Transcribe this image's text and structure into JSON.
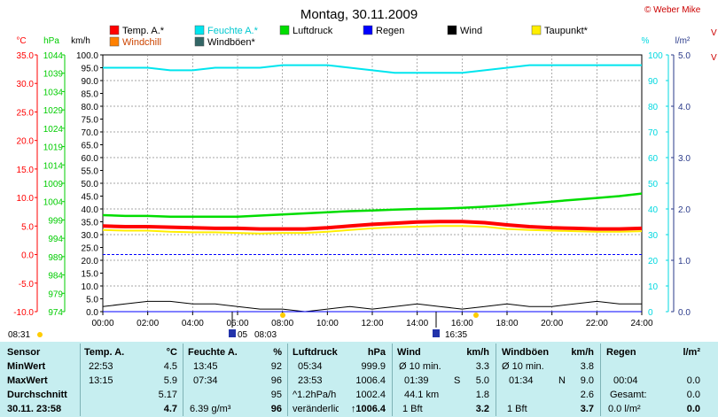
{
  "page": {
    "title": "Montag, 30.11.2009",
    "copyright": "© Weber Mike",
    "left_edge_labels": [
      "V",
      "V"
    ]
  },
  "colors": {
    "temp": "#ff0000",
    "humidity": "#00e5ee",
    "pressure": "#00dd00",
    "rain": "#0000ff",
    "wind": "#000000",
    "dewpoint": "#ffee00",
    "windchill": "#ff8000",
    "gust": "#336666",
    "rain_axis": "#2a3a8a",
    "stats_bg": "#c6eef0"
  },
  "legend": [
    {
      "label": "Temp. A.*",
      "color": "#ff0000"
    },
    {
      "label": "Feuchte A.*",
      "color": "#00e5ee"
    },
    {
      "label": "Luftdruck",
      "color": "#00dd00"
    },
    {
      "label": "Regen",
      "color": "#0000ff"
    },
    {
      "label": "Wind",
      "color": "#000000"
    },
    {
      "label": "Taupunkt*",
      "color": "#ffee00"
    },
    {
      "label": "Windchill",
      "color": "#ff8000"
    },
    {
      "label": "Windböen*",
      "color": "#336666"
    }
  ],
  "chart_data": {
    "type": "line",
    "title": "Montag, 30.11.2009",
    "x_range_hours": [
      0,
      24
    ],
    "x_tick_labels": [
      "00:00",
      "02:00",
      "04:00",
      "06:00",
      "08:00",
      "10:00",
      "12:00",
      "14:00",
      "16:00",
      "18:00",
      "20:00",
      "22:00",
      "24:00"
    ],
    "grid": true,
    "axes": {
      "temp_c": {
        "unit": "°C",
        "range": [
          -10,
          35
        ],
        "ticks": [
          "35.0",
          "30.0",
          "25.0",
          "20.0",
          "15.0",
          "10.0",
          "5.0",
          "0.0",
          "-5.0",
          "-10.0"
        ]
      },
      "pressure_hpa": {
        "unit": "hPa",
        "range": [
          974,
          1044
        ],
        "ticks": [
          "1044",
          "1039",
          "1034",
          "1029",
          "1024",
          "1019",
          "1014",
          "1009",
          "1004",
          "999",
          "994",
          "989",
          "984",
          "979",
          "974"
        ]
      },
      "wind_kmh": {
        "unit": "km/h",
        "range": [
          0,
          100
        ],
        "ticks": [
          "100.0",
          "95.0",
          "90.0",
          "85.0",
          "80.0",
          "75.0",
          "70.0",
          "65.0",
          "60.0",
          "55.0",
          "50.0",
          "45.0",
          "40.0",
          "35.0",
          "30.0",
          "25.0",
          "20.0",
          "15.0",
          "10.0",
          "5.0",
          "0.0"
        ]
      },
      "humidity_pct": {
        "unit": "%",
        "range": [
          0,
          100
        ],
        "ticks": [
          "100",
          "90",
          "80",
          "70",
          "60",
          "50",
          "40",
          "30",
          "20",
          "10",
          "0"
        ]
      },
      "rain_lm2": {
        "unit": "l/m²",
        "range": [
          0,
          5
        ],
        "ticks": [
          "5.0",
          "4.0",
          "3.0",
          "2.0",
          "1.0",
          "0.0"
        ]
      }
    },
    "series": [
      {
        "name": "Temp. A.*",
        "axis": "temp_c",
        "x": [
          0,
          1,
          2,
          3,
          4,
          5,
          6,
          7,
          8,
          9,
          10,
          11,
          12,
          13,
          14,
          15,
          16,
          17,
          18,
          19,
          20,
          21,
          22,
          23,
          24
        ],
        "values": [
          5.0,
          4.9,
          4.9,
          4.8,
          4.7,
          4.6,
          4.6,
          4.5,
          4.5,
          4.5,
          4.7,
          5.0,
          5.3,
          5.5,
          5.7,
          5.8,
          5.8,
          5.6,
          5.2,
          4.9,
          4.7,
          4.6,
          4.5,
          4.5,
          4.6
        ]
      },
      {
        "name": "Feuchte A.*",
        "axis": "humidity_pct",
        "x": [
          0,
          1,
          2,
          3,
          4,
          5,
          6,
          7,
          8,
          9,
          10,
          11,
          12,
          13,
          14,
          15,
          16,
          17,
          18,
          19,
          20,
          21,
          22,
          23,
          24
        ],
        "values": [
          95,
          95,
          95,
          94,
          94,
          95,
          95,
          95,
          96,
          96,
          96,
          95,
          94,
          93,
          93,
          93,
          93,
          94,
          95,
          96,
          96,
          96,
          96,
          96,
          96
        ]
      },
      {
        "name": "Luftdruck",
        "axis": "pressure_hpa",
        "x": [
          0,
          1,
          2,
          3,
          4,
          5,
          6,
          7,
          8,
          9,
          10,
          11,
          12,
          13,
          14,
          15,
          16,
          17,
          18,
          19,
          20,
          21,
          22,
          23,
          24
        ],
        "values": [
          1000.3,
          1000.1,
          1000.1,
          999.9,
          999.9,
          999.9,
          999.9,
          1000.2,
          1000.5,
          1000.8,
          1001.1,
          1001.4,
          1001.6,
          1001.8,
          1002.0,
          1002.1,
          1002.3,
          1002.6,
          1003.0,
          1003.5,
          1004.0,
          1004.5,
          1005.0,
          1005.5,
          1006.2
        ]
      },
      {
        "name": "Taupunkt*",
        "axis": "temp_c",
        "x": [
          0,
          1,
          2,
          3,
          4,
          5,
          6,
          7,
          8,
          9,
          10,
          11,
          12,
          13,
          14,
          15,
          16,
          17,
          18,
          19,
          20,
          21,
          22,
          23,
          24
        ],
        "values": [
          4.3,
          4.2,
          4.2,
          4.0,
          3.9,
          3.9,
          3.8,
          3.7,
          3.8,
          3.8,
          4.0,
          4.3,
          4.6,
          4.8,
          4.9,
          5.0,
          5.0,
          4.9,
          4.5,
          4.3,
          4.2,
          4.1,
          4.0,
          4.0,
          4.1
        ]
      },
      {
        "name": "Wind",
        "axis": "wind_kmh",
        "x": [
          0,
          1,
          2,
          3,
          4,
          5,
          6,
          7,
          8,
          9,
          10,
          11,
          12,
          13,
          14,
          15,
          16,
          17,
          18,
          19,
          20,
          21,
          22,
          23,
          24
        ],
        "values": [
          2,
          3,
          4,
          4,
          3,
          3,
          2,
          1,
          1,
          0,
          1,
          2,
          1,
          2,
          3,
          2,
          1,
          2,
          3,
          2,
          2,
          3,
          4,
          3,
          3
        ]
      },
      {
        "name": "Regen",
        "axis": "rain_lm2",
        "x": [
          0,
          24
        ],
        "values": [
          0.0,
          0.0
        ]
      }
    ],
    "reference_lines": [
      {
        "axis": "temp_c",
        "value": 0.0,
        "style": "dashed",
        "color": "#0000ff"
      }
    ]
  },
  "sun": {
    "sunrise": "08:31",
    "sunset": "16:35",
    "moon_markers": [
      "05",
      "08:03"
    ]
  },
  "stats": {
    "row_labels": [
      "Sensor",
      "MinWert",
      "MaxWert",
      "Durchschnitt",
      "30.11. 23:58"
    ],
    "temp": {
      "header": "Temp. A.",
      "unit": "°C",
      "min_time": "22:53",
      "min": "4.5",
      "max_time": "13:15",
      "max": "5.9",
      "avg": "5.17",
      "current": "4.7"
    },
    "humidity": {
      "header": "Feuchte A.",
      "unit": "%",
      "min_time": "13:45",
      "min": "92",
      "max_time": "07:34",
      "max": "96",
      "avg": "95",
      "extra": "6.39 g/m³",
      "current": "96"
    },
    "pressure": {
      "header": "Luftdruck",
      "unit": "hPa",
      "min_time": "05:34",
      "min": "999.9",
      "max_time": "23:53",
      "max": "1006.4",
      "trend_label": "^1.2hPa/h",
      "avg": "1002.4",
      "trend_word": "veränderlich",
      "current": "1006.4"
    },
    "wind": {
      "header": "Wind",
      "unit": "km/h",
      "row1_label": "Ø 10 min.",
      "row1_val": "3.3",
      "row2_time": "01:39",
      "row2_dir": "S",
      "row2_val": "5.0",
      "dist_label": "44.1 km",
      "dist_val": "1.8",
      "bft": "1 Bft",
      "current": "3.2"
    },
    "gust": {
      "header": "Windböen",
      "unit": "km/h",
      "row1_label": "Ø 10 min.",
      "row1_val": "3.8",
      "row2_time": "01:34",
      "row2_dir": "N",
      "row2_val": "9.0",
      "avg": "2.6",
      "bft": "1 Bft",
      "current": "3.7"
    },
    "rain": {
      "header": "Regen",
      "unit": "l/m²",
      "row2_time": "00:04",
      "row2_val": "0.0",
      "total_label": "Gesamt:",
      "total_val": "0.0",
      "cur_label": "0.0 l/m²",
      "current": "0.0"
    }
  }
}
